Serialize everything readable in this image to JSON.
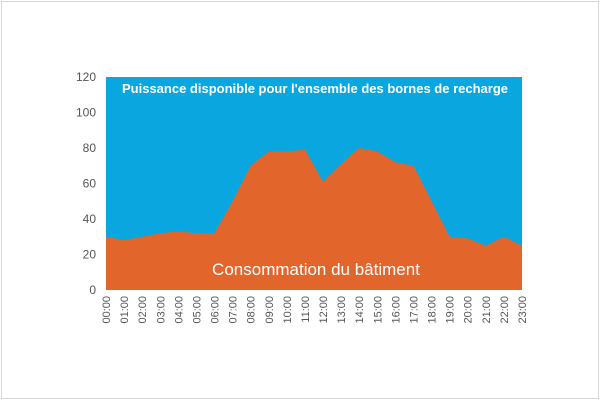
{
  "colors": {
    "available": "#0aa6df",
    "building": "#e2662b",
    "axis_text": "#555555"
  },
  "chart_data": {
    "type": "area",
    "title": "",
    "xlabel": "",
    "ylabel": "",
    "ylim": [
      0,
      120
    ],
    "yticks": [
      0,
      20,
      40,
      60,
      80,
      100,
      120
    ],
    "grid": false,
    "legend": "none",
    "categories": [
      "00:00",
      "01:00",
      "02:00",
      "03:00",
      "04:00",
      "05:00",
      "06:00",
      "07:00",
      "08:00",
      "09:00",
      "10:00",
      "11:00",
      "12:00",
      "13:00",
      "14:00",
      "15:00",
      "16:00",
      "17:00",
      "18:00",
      "19:00",
      "20:00",
      "21:00",
      "22:00",
      "23:00"
    ],
    "series": [
      {
        "name": "Puissance disponible pour l'ensemble des bornes de recharge",
        "values": [
          120,
          120,
          120,
          120,
          120,
          120,
          120,
          120,
          120,
          120,
          120,
          120,
          120,
          120,
          120,
          120,
          120,
          120,
          120,
          120,
          120,
          120,
          120,
          120
        ]
      },
      {
        "name": "Consommation du bâtiment",
        "values": [
          30,
          28,
          30,
          32,
          33,
          32,
          32,
          50,
          70,
          78,
          78,
          79,
          61,
          71,
          80,
          78,
          72,
          70,
          50,
          30,
          29,
          25,
          30,
          25
        ]
      }
    ]
  }
}
